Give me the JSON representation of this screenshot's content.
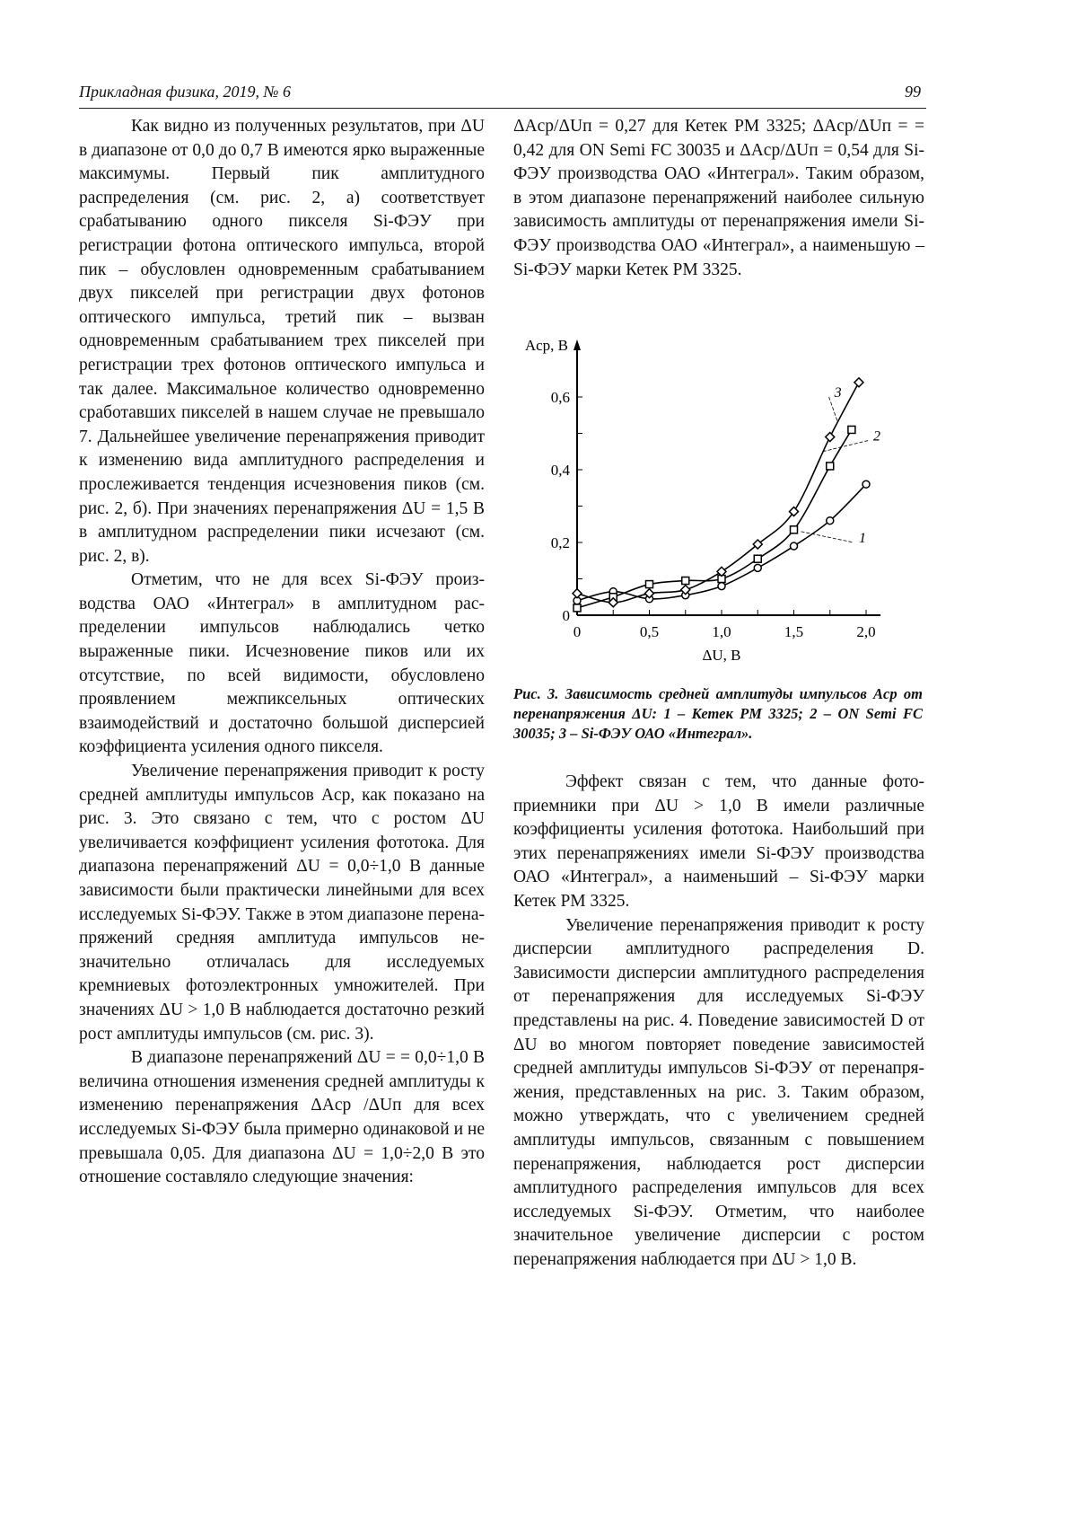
{
  "header": {
    "journal": "Прикладная физика, 2019, № 6",
    "page": "99"
  },
  "left_column": [
    "Как видно из полученных результатов, при ΔU в диапазоне от 0,0 до 0,7 В имеются ярко выраженные максимумы. Первый пик амплитудного распределения (см. рис. 2, а) соответствует срабатыванию одного пикселя Si-ФЭУ при регистрации фотона оптического импульса, второй пик – обусловлен одновре­менным срабатыванием двух пикселей при регистрации двух фотонов оптического им­пульса, третий пик – вызван одновременным срабатыванием трех пикселей при регистра­ции трех фотонов оптического импульса и так далее. Максимальное количество одновремен­но сработавших пикселей в нашем случае не превышало 7. Дальнейшее увеличение пере­напряжения приводит к изменению вида ам­плитудного распределения и прослеживается тенденция исчезновения пиков (см. рис. 2, б). При значениях перенапряжения ΔU = 1,5 В в амплитудном распределении пики исчезают (см. рис. 2, в).",
    "Отметим, что не для всех Si-ФЭУ произ­водства ОАО «Интеграл» в амплитудном рас­пределении импульсов наблюдались четко выраженные пики. Исчезновение пиков или их отсутствие, по всей видимости, обусловле­но проявлением межпиксельных оптических взаимодействий и достаточно большой дис­персией коэффициента усиления одного пик­селя.",
    "Увеличение перенапряжения приводит к росту средней амплитуды импульсов Aср, как показано на рис. 3. Это связано с тем, что с ростом ΔU увеличивается коэффициент уси­ления фототока. Для диапазона перенапряже­ний ΔU = 0,0÷1,0 В данные зависимости были практически линейными для всех исследуе­мых Si-ФЭУ. Также в этом диапазоне перена­пряжений средняя амплитуда импульсов не­значительно отличалась для исследуемых кремниевых фотоэлектронных умножителей. При значениях ΔU > 1,0 В наблюдается доста­точно резкий рост амплитуды импульсов (см. рис. 3).",
    "В диапазоне перенапряжений ΔU = = 0,0÷1,0 В величина отношения изменения средней амплитуды к изменению перенапря­жения ΔAср /ΔUп для всех исследуемых Si-ФЭУ была примерно одинаковой и не превы­шала 0,05. Для диапазона ΔU = 1,0÷2,0 В это отношение составляло следующие значения:"
  ],
  "right_column_top": "ΔAср/ΔUп = 0,27 для Кетек PM 3325; ΔAср/ΔUп = = 0,42 для ON Semi FC 30035 и ΔAср/ΔUп = 0,54 для Si-ФЭУ производства ОАО «Интеграл». Таким образом, в этом диапазоне перенапря­жений наиболее сильную зависимость ампли­туды от перенапряжения имели Si-ФЭУ про­изводства ОАО «Интеграл», а наименьшую – Si-ФЭУ марки Кетек PM 3325.",
  "figure_caption": "Рис. 3. Зависимость средней амплитуды импульсов Aср от перенапряжения ΔU: 1 – Кетек PM 3325; 2 – ON Semi FC 30035; 3 – Si-ФЭУ ОАО «Интеграл».",
  "right_column_bottom": [
    "Эффект связан с тем, что данные фото­приемники при ΔU > 1,0 В имели различные коэффициенты усиления фототока. Наиболь­ший при этих перенапряжениях имели Si-ФЭУ производства ОАО «Интеграл», а наименьший – Si-ФЭУ марки Кетек PM 3325.",
    "Увеличение перенапряжения приводит к росту дисперсии амплитудного распределе­ния D. Зависимости дисперсии амплитудного распределения от перенапряжения для иссле­дуемых Si-ФЭУ представлены на рис. 4. Поведение зависимостей D от ΔU во многом повторяет поведение зависимостей средней амплитуды импульсов Si-ФЭУ от перенапря­жения, представленных на рис. 3. Таким обра­зом, можно утверждать, что с увеличением средней амплитуды импульсов, связанным с повышением перенапряжения, наблюдается рост дисперсии амплитудного распределения импульсов для всех исследуемых Si-ФЭУ. Отметим, что наиболее значительное увели­чение дисперсии с ростом перенапряжения наблюдается при ΔU > 1,0 В."
  ],
  "chart_data": {
    "type": "scatter",
    "xlabel": "ΔU, В",
    "ylabel": "Aср, В",
    "xlim": [
      0,
      2.1
    ],
    "ylim": [
      0,
      0.7
    ],
    "xticks": [
      "0",
      "0,5",
      "1,0",
      "1,5",
      "2,0"
    ],
    "xtick_values": [
      0,
      0.5,
      1.0,
      1.5,
      2.0
    ],
    "yticks": [
      "0",
      "0,2",
      "0,4",
      "0,6"
    ],
    "ytick_values": [
      0,
      0.2,
      0.4,
      0.6
    ],
    "grid": false,
    "series": [
      {
        "name": "1",
        "marker": "circle",
        "x": [
          0,
          0.25,
          0.5,
          0.75,
          1.0,
          1.25,
          1.5,
          1.75,
          2.0
        ],
        "y": [
          0.04,
          0.065,
          0.045,
          0.055,
          0.08,
          0.13,
          0.19,
          0.26,
          0.36
        ]
      },
      {
        "name": "2",
        "marker": "square",
        "x": [
          0,
          0.25,
          0.5,
          0.75,
          1.0,
          1.25,
          1.5,
          1.75,
          1.9
        ],
        "y": [
          0.02,
          0.05,
          0.085,
          0.095,
          0.1,
          0.155,
          0.235,
          0.41,
          0.51
        ]
      },
      {
        "name": "3",
        "marker": "diamond",
        "x": [
          0,
          0.25,
          0.5,
          0.75,
          1.0,
          1.25,
          1.5,
          1.75,
          1.95
        ],
        "y": [
          0.06,
          0.035,
          0.06,
          0.07,
          0.12,
          0.195,
          0.285,
          0.49,
          0.64
        ]
      }
    ]
  }
}
